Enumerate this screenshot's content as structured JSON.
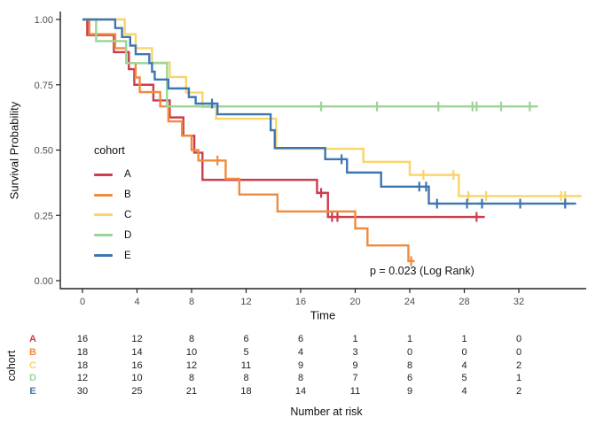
{
  "figure": {
    "ylabel": "Survival Probability",
    "xlabel": "Time",
    "legend_title": "cohort",
    "annotation": "p = 0.023 (Log Rank)"
  },
  "chart_data": {
    "type": "line",
    "subtype": "kaplan-meier-step-curves",
    "title": "",
    "xlabel": "Time",
    "ylabel": "Survival Probability",
    "xlim": [
      -1.6,
      37
    ],
    "ylim": [
      0,
      1.04
    ],
    "grid": false,
    "legend_position": "inside-left",
    "legend_title": "cohort",
    "x_ticks": [
      0,
      4,
      8,
      12,
      16,
      20,
      24,
      28,
      32
    ],
    "y_ticks": [
      0,
      0.25,
      0.5,
      0.75,
      1
    ],
    "y_tick_labels": [
      "0.00",
      "0.25",
      "0.50",
      "0.75",
      "1.00"
    ],
    "annotation": "p = 0.023 (Log Rank)",
    "series": [
      {
        "name": "A",
        "color": "#CC3D4E",
        "steps": [
          [
            0,
            1
          ],
          [
            0.35,
            0.94
          ],
          [
            2.3,
            0.875
          ],
          [
            3.4,
            0.81
          ],
          [
            3.8,
            0.75
          ],
          [
            5.2,
            0.69
          ],
          [
            6.4,
            0.625
          ],
          [
            7.4,
            0.555
          ],
          [
            8.2,
            0.49
          ],
          [
            8.8,
            0.386
          ],
          [
            17.2,
            0.336
          ],
          [
            18.0,
            0.244
          ]
        ],
        "end": 29.5,
        "censors": [
          [
            17.5,
            0.336
          ],
          [
            18.3,
            0.244
          ],
          [
            18.7,
            0.244
          ],
          [
            28.9,
            0.244
          ]
        ]
      },
      {
        "name": "B",
        "color": "#F08B3D",
        "steps": [
          [
            0,
            1
          ],
          [
            0.5,
            0.944
          ],
          [
            2.4,
            0.89
          ],
          [
            3.2,
            0.833
          ],
          [
            3.9,
            0.778
          ],
          [
            4.2,
            0.722
          ],
          [
            5.7,
            0.667
          ],
          [
            6.3,
            0.61
          ],
          [
            7.3,
            0.555
          ],
          [
            8.0,
            0.5
          ],
          [
            8.5,
            0.46
          ],
          [
            10.5,
            0.39
          ],
          [
            11.5,
            0.33
          ],
          [
            14.3,
            0.265
          ],
          [
            20.0,
            0.2
          ],
          [
            20.9,
            0.135
          ],
          [
            23.9,
            0.075
          ]
        ],
        "end": 24.3,
        "censors": [
          [
            9.9,
            0.46
          ],
          [
            24.1,
            0.075
          ]
        ]
      },
      {
        "name": "C",
        "color": "#F8D569",
        "steps": [
          [
            0,
            1
          ],
          [
            3.1,
            0.944
          ],
          [
            3.9,
            0.89
          ],
          [
            5.1,
            0.835
          ],
          [
            6.4,
            0.78
          ],
          [
            7.6,
            0.72
          ],
          [
            8.8,
            0.665
          ],
          [
            9.8,
            0.62
          ],
          [
            14.2,
            0.505
          ],
          [
            20.6,
            0.455
          ],
          [
            24.0,
            0.405
          ],
          [
            27.6,
            0.324
          ]
        ],
        "end": 36.6,
        "censors": [
          [
            25.0,
            0.405
          ],
          [
            27.2,
            0.405
          ],
          [
            28.3,
            0.324
          ],
          [
            29.6,
            0.324
          ],
          [
            35.1,
            0.324
          ],
          [
            35.4,
            0.324
          ]
        ]
      },
      {
        "name": "D",
        "color": "#9BD596",
        "steps": [
          [
            0,
            1
          ],
          [
            1.0,
            0.917
          ],
          [
            3.2,
            0.833
          ],
          [
            6.2,
            0.667
          ]
        ],
        "end": 33.4,
        "censors": [
          [
            17.5,
            0.667
          ],
          [
            21.6,
            0.667
          ],
          [
            26.1,
            0.667
          ],
          [
            28.6,
            0.667
          ],
          [
            28.9,
            0.667
          ],
          [
            30.7,
            0.667
          ],
          [
            32.8,
            0.667
          ]
        ]
      },
      {
        "name": "E",
        "color": "#3D77B1",
        "steps": [
          [
            0,
            1
          ],
          [
            2.4,
            0.967
          ],
          [
            2.9,
            0.933
          ],
          [
            3.5,
            0.9
          ],
          [
            3.9,
            0.867
          ],
          [
            4.9,
            0.833
          ],
          [
            5.1,
            0.8
          ],
          [
            5.3,
            0.77
          ],
          [
            6.3,
            0.736
          ],
          [
            7.8,
            0.703
          ],
          [
            8.3,
            0.678
          ],
          [
            9.9,
            0.637
          ],
          [
            13.8,
            0.576
          ],
          [
            14.1,
            0.508
          ],
          [
            17.8,
            0.465
          ],
          [
            19.4,
            0.414
          ],
          [
            21.9,
            0.36
          ],
          [
            25.4,
            0.295
          ]
        ],
        "end": 36.2,
        "censors": [
          [
            9.5,
            0.678
          ],
          [
            19.0,
            0.465
          ],
          [
            24.7,
            0.36
          ],
          [
            25.2,
            0.36
          ],
          [
            26.0,
            0.295
          ],
          [
            28.2,
            0.295
          ],
          [
            29.3,
            0.295
          ],
          [
            32.1,
            0.295
          ],
          [
            35.4,
            0.295
          ]
        ]
      }
    ]
  },
  "risk_table": {
    "title": "Number at risk",
    "axis_label": "cohort",
    "times": [
      0,
      4,
      8,
      12,
      16,
      20,
      24,
      28,
      32
    ],
    "rows": [
      {
        "cohort": "A",
        "color": "#CC3D4E",
        "counts": [
          16,
          12,
          8,
          6,
          6,
          1,
          1,
          1,
          0
        ]
      },
      {
        "cohort": "B",
        "color": "#F08B3D",
        "counts": [
          18,
          14,
          10,
          5,
          4,
          3,
          0,
          0,
          0
        ]
      },
      {
        "cohort": "C",
        "color": "#F8D569",
        "counts": [
          18,
          16,
          12,
          11,
          9,
          9,
          8,
          4,
          2
        ]
      },
      {
        "cohort": "D",
        "color": "#9BD596",
        "counts": [
          12,
          10,
          8,
          8,
          8,
          7,
          6,
          5,
          1
        ]
      },
      {
        "cohort": "E",
        "color": "#3D77B1",
        "counts": [
          30,
          25,
          21,
          18,
          14,
          11,
          9,
          4,
          2
        ]
      }
    ]
  }
}
